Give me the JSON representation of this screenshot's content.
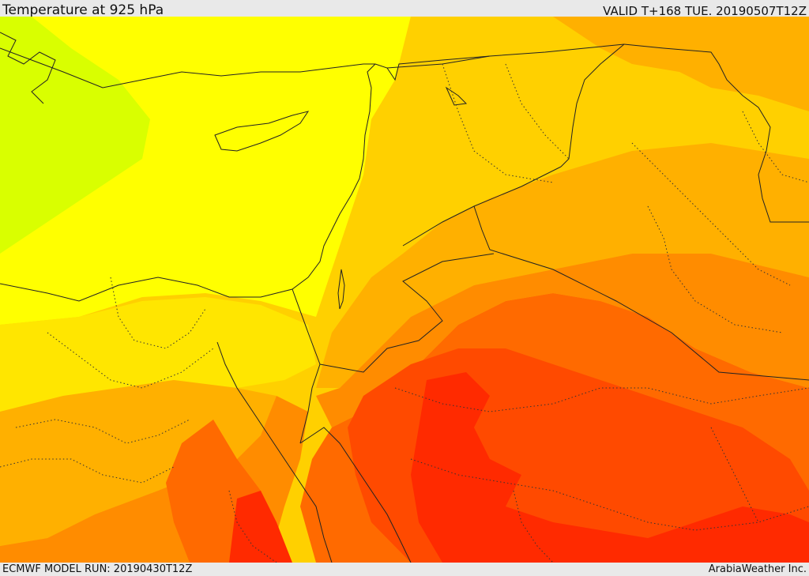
{
  "header": {
    "title": "Temperature at 925 hPa",
    "valid": "VALID T+168 TUE. 20190507T12Z"
  },
  "footer": {
    "model_run": "ECMWF MODEL RUN: 20190430T12Z",
    "credit": "ArabiaWeather Inc."
  },
  "map": {
    "field": "temperature_925hPa",
    "colors": {
      "green_yellow": "#d9ff00",
      "yellow": "#ffff00",
      "light_orange_yellow": "#ffe600",
      "gold": "#ffd000",
      "amber": "#ffb000",
      "orange": "#ff8c00",
      "dark_orange": "#ff6a00",
      "red_orange": "#ff4a00",
      "red": "#ff2a00",
      "coast": "#222222",
      "border": "#222222"
    }
  }
}
